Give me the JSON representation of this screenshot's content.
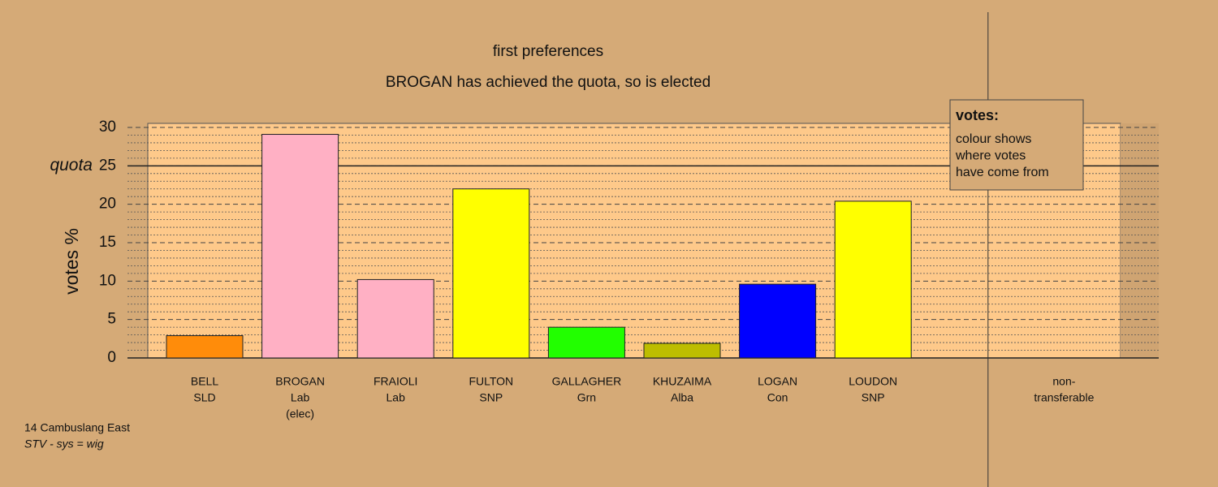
{
  "chart_data": {
    "type": "bar",
    "title": "first preferences",
    "subtitle": "BROGAN has achieved the quota, so is elected",
    "y_label": "votes %",
    "categories": [
      [
        "BELL",
        "SLD"
      ],
      [
        "BROGAN",
        "Lab",
        "(elec)"
      ],
      [
        "FRAIOLI",
        "Lab"
      ],
      [
        "FULTON",
        "SNP"
      ],
      [
        "GALLAGHER",
        "Grn"
      ],
      [
        "KHUZAIMA",
        "Alba"
      ],
      [
        "LOGAN",
        "Con"
      ],
      [
        "LOUDON",
        "SNP"
      ],
      [
        "non-",
        "transferable"
      ]
    ],
    "values": [
      2.9,
      29.1,
      10.2,
      22.0,
      4.0,
      1.9,
      9.6,
      20.4,
      0
    ],
    "colors": [
      "#ff8c0a",
      "#ffb0c4",
      "#ffb0c4",
      "#ffff00",
      "#22ff00",
      "#bdbd00",
      "#0000ff",
      "#ffff00",
      "#d5aa77"
    ],
    "ylim": [
      0,
      30
    ],
    "yticks": [
      0,
      5,
      10,
      15,
      20,
      25,
      30
    ],
    "minor_yticks": [
      1,
      2,
      3,
      4,
      6,
      7,
      8,
      9,
      11,
      12,
      13,
      14,
      16,
      17,
      18,
      19,
      21,
      22,
      23,
      24,
      26,
      27,
      28,
      29
    ],
    "quota": {
      "value": 25,
      "label": "quota"
    },
    "grid": true,
    "legend": {
      "title": "votes:",
      "lines": [
        "colour shows",
        "where votes",
        "have come from"
      ]
    },
    "footer": [
      "14 Cambuslang East",
      "STV - sys = wig"
    ]
  }
}
